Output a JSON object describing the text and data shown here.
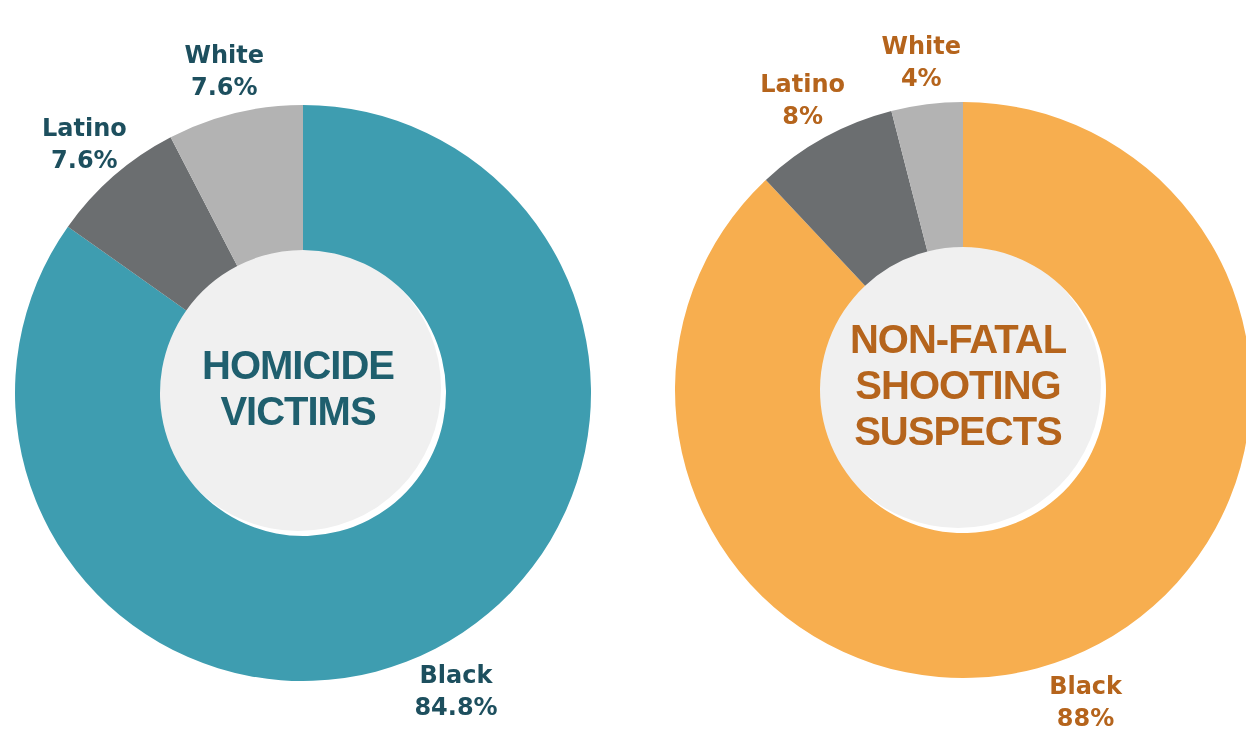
{
  "chart_data": [
    {
      "type": "donut",
      "title": "HOMICIDE VICTIMS",
      "categories": [
        "Black",
        "Latino",
        "White"
      ],
      "values": [
        84.8,
        7.6,
        7.6
      ],
      "value_labels": [
        "84.8%",
        "7.6%",
        "7.6%"
      ],
      "colors": [
        "#3e9db0",
        "#6b6e70",
        "#b3b3b3"
      ]
    },
    {
      "type": "donut",
      "title": "NON-FATAL SHOOTING SUSPECTS",
      "categories": [
        "Black",
        "Latino",
        "White"
      ],
      "values": [
        88,
        8,
        4
      ],
      "value_labels": [
        "88%",
        "8%",
        "4%"
      ],
      "colors": [
        "#f7ae4f",
        "#6b6e70",
        "#b3b3b3"
      ]
    }
  ]
}
